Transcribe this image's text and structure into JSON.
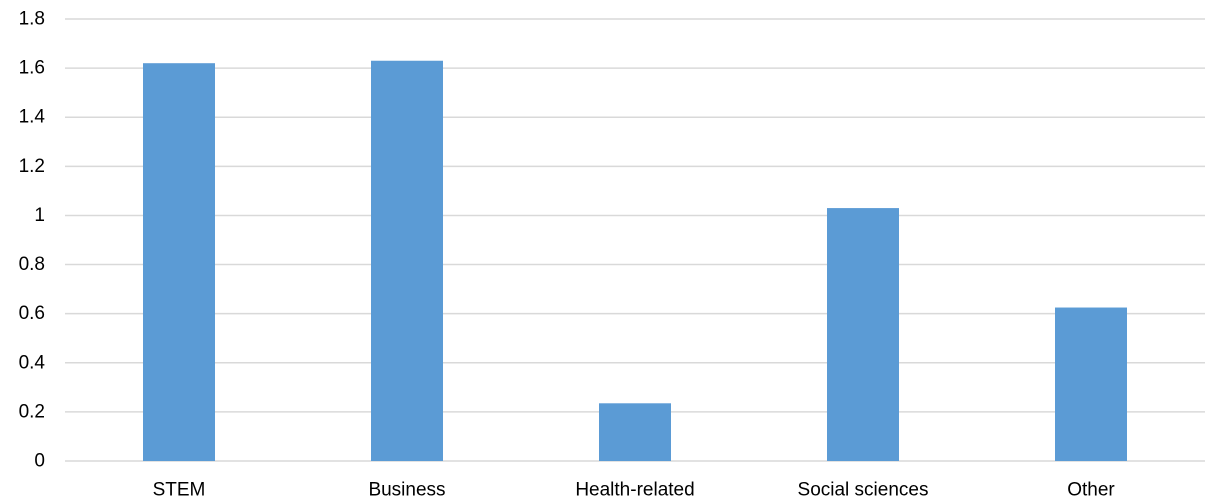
{
  "chart_data": {
    "type": "bar",
    "categories": [
      "STEM",
      "Business",
      "Health-related",
      "Social sciences",
      "Other"
    ],
    "values": [
      1.62,
      1.63,
      0.235,
      1.03,
      0.625
    ],
    "title": "",
    "xlabel": "",
    "ylabel": "",
    "ylim": [
      0,
      1.8
    ],
    "yticks": [
      "0",
      "0.2",
      "0.4",
      "0.6",
      "0.8",
      "1",
      "1.2",
      "1.4",
      "1.6",
      "1.8"
    ],
    "grid": true,
    "legend": "none",
    "bar_color": "#5b9bd5",
    "grid_color": "#d9d9d9"
  }
}
